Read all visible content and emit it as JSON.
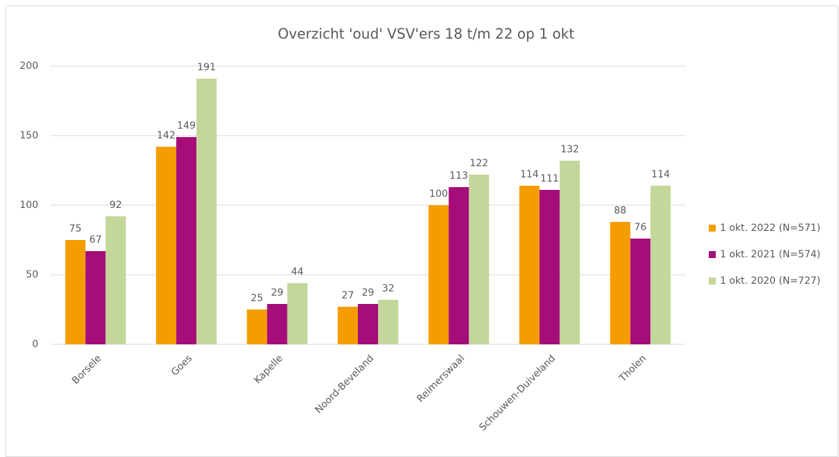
{
  "chart_data": {
    "type": "bar",
    "title": "Overzicht 'oud' VSV'ers 18 t/m 22 op 1 okt",
    "categories": [
      "Borsele",
      "Goes",
      "Kapelle",
      "Noord-Beveland",
      "Reimerswaal",
      "Schouwen-Duiveland",
      "Tholen"
    ],
    "series": [
      {
        "name": "1 okt. 2022 (N=571)",
        "color": "#f59d00",
        "values": [
          75,
          142,
          25,
          27,
          100,
          114,
          88
        ]
      },
      {
        "name": "1 okt. 2021 (N=574)",
        "color": "#a50d78",
        "values": [
          67,
          149,
          29,
          29,
          113,
          111,
          76
        ]
      },
      {
        "name": "1 okt. 2020 (N=727)",
        "color": "#c4d79b",
        "values": [
          92,
          191,
          44,
          32,
          122,
          132,
          114
        ]
      }
    ],
    "ylim": [
      0,
      200
    ],
    "yticks": [
      0,
      50,
      100,
      150,
      200
    ],
    "grid": true,
    "legend": "right"
  }
}
